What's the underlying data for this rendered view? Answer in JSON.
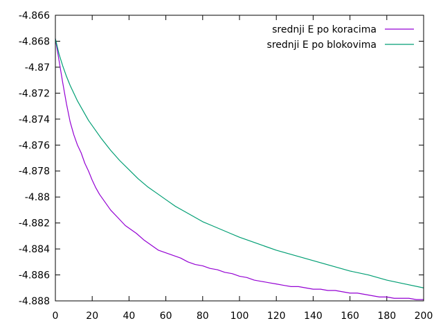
{
  "chart_data": {
    "type": "line",
    "title": "",
    "xlabel": "",
    "ylabel": "",
    "xlim": [
      0,
      200
    ],
    "ylim": [
      -4.888,
      -4.866
    ],
    "xticks": [
      0,
      20,
      40,
      60,
      80,
      100,
      120,
      140,
      160,
      180,
      200
    ],
    "xtick_labels": [
      "0",
      "20",
      "40",
      "60",
      "80",
      "100",
      "120",
      "140",
      "160",
      "180",
      "200"
    ],
    "yticks": [
      -4.866,
      -4.868,
      -4.87,
      -4.872,
      -4.874,
      -4.876,
      -4.878,
      -4.88,
      -4.882,
      -4.884,
      -4.886,
      -4.888
    ],
    "ytick_labels": [
      "-4.866",
      "-4.868",
      "-4.87",
      "-4.872",
      "-4.874",
      "-4.876",
      "-4.878",
      "-4.88",
      "-4.882",
      "-4.884",
      "-4.886",
      "-4.888"
    ],
    "grid": false,
    "legend_position": "top-right",
    "series": [
      {
        "name": "srednji E po koracima",
        "color": "#9400d3",
        "x": [
          0,
          2,
          4,
          6,
          8,
          10,
          12,
          14,
          16,
          18,
          20,
          22,
          24,
          26,
          28,
          30,
          34,
          38,
          40,
          44,
          48,
          52,
          56,
          60,
          64,
          68,
          72,
          76,
          80,
          84,
          88,
          92,
          96,
          100,
          104,
          108,
          112,
          116,
          120,
          124,
          128,
          132,
          136,
          140,
          144,
          148,
          152,
          156,
          160,
          164,
          168,
          172,
          176,
          180,
          184,
          188,
          192,
          196,
          200
        ],
        "y": [
          -4.8678,
          -4.8695,
          -4.8712,
          -4.8728,
          -4.8742,
          -4.8752,
          -4.876,
          -4.8766,
          -4.8774,
          -4.878,
          -4.8787,
          -4.8793,
          -4.8798,
          -4.8802,
          -4.8806,
          -4.881,
          -4.8816,
          -4.8822,
          -4.8824,
          -4.8828,
          -4.8833,
          -4.8837,
          -4.8841,
          -4.8843,
          -4.8845,
          -4.8847,
          -4.885,
          -4.8852,
          -4.8853,
          -4.8855,
          -4.8856,
          -4.8858,
          -4.8859,
          -4.8861,
          -4.8862,
          -4.8864,
          -4.8865,
          -4.8866,
          -4.8867,
          -4.8868,
          -4.8869,
          -4.8869,
          -4.887,
          -4.8871,
          -4.8871,
          -4.8872,
          -4.8872,
          -4.8873,
          -4.8874,
          -4.8874,
          -4.8875,
          -4.8876,
          -4.8877,
          -4.8877,
          -4.8878,
          -4.8878,
          -4.8878,
          -4.8879,
          -4.8879
        ]
      },
      {
        "name": "srednji E po blokovima",
        "color": "#009e73",
        "x": [
          0,
          2,
          4,
          6,
          8,
          10,
          12,
          14,
          16,
          18,
          20,
          25,
          30,
          35,
          40,
          45,
          50,
          55,
          60,
          65,
          70,
          75,
          80,
          85,
          90,
          95,
          100,
          110,
          120,
          130,
          140,
          150,
          160,
          170,
          180,
          190,
          200
        ],
        "y": [
          -4.8678,
          -4.869,
          -4.8699,
          -4.8707,
          -4.8714,
          -4.872,
          -4.8726,
          -4.8731,
          -4.8736,
          -4.8741,
          -4.8745,
          -4.8755,
          -4.8764,
          -4.8772,
          -4.8779,
          -4.8786,
          -4.8792,
          -4.8797,
          -4.8802,
          -4.8807,
          -4.8811,
          -4.8815,
          -4.8819,
          -4.8822,
          -4.8825,
          -4.8828,
          -4.8831,
          -4.8836,
          -4.8841,
          -4.8845,
          -4.8849,
          -4.8853,
          -4.8857,
          -4.886,
          -4.8864,
          -4.8867,
          -4.887
        ]
      }
    ]
  }
}
